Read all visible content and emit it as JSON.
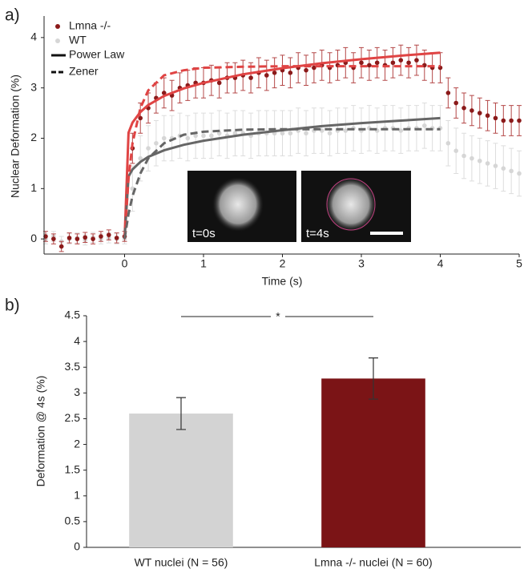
{
  "chart_data": [
    {
      "type": "scatter",
      "panel_label": "a)",
      "x_label": "Time (s)",
      "y_label": "Nuclear Deformation (%)",
      "x": [
        -1,
        -0.9,
        -0.8,
        -0.7,
        -0.6,
        -0.5,
        -0.4,
        -0.3,
        -0.2,
        -0.1,
        0,
        0.1,
        0.2,
        0.3,
        0.4,
        0.5,
        0.6,
        0.7,
        0.8,
        0.9,
        1,
        1.1,
        1.2,
        1.3,
        1.4,
        1.5,
        1.6,
        1.7,
        1.8,
        1.9,
        2,
        2.1,
        2.2,
        2.3,
        2.4,
        2.5,
        2.6,
        2.7,
        2.8,
        2.9,
        3,
        3.1,
        3.2,
        3.3,
        3.4,
        3.5,
        3.6,
        3.7,
        3.8,
        3.9,
        4,
        4.1,
        4.2,
        4.3,
        4.4,
        4.5,
        4.6,
        4.7,
        4.8,
        4.9,
        5
      ],
      "series": [
        {
          "name": "Lmna -/-",
          "color": "#8b1a1a",
          "error_color": "#b44848",
          "values": [
            0.05,
            0.0,
            -0.15,
            0.02,
            0.0,
            0.03,
            0.0,
            0.05,
            0.08,
            0.02,
            0.05,
            1.8,
            2.4,
            2.6,
            2.8,
            2.9,
            2.85,
            3.0,
            3.05,
            3.1,
            3.1,
            3.15,
            3.1,
            3.2,
            3.2,
            3.25,
            3.2,
            3.3,
            3.25,
            3.3,
            3.35,
            3.3,
            3.4,
            3.35,
            3.4,
            3.45,
            3.4,
            3.45,
            3.5,
            3.4,
            3.5,
            3.45,
            3.5,
            3.45,
            3.5,
            3.55,
            3.5,
            3.55,
            3.45,
            3.4,
            3.4,
            2.9,
            2.7,
            2.6,
            2.55,
            2.5,
            2.45,
            2.4,
            2.35,
            2.35,
            2.35
          ],
          "errors": [
            0.1,
            0.1,
            0.1,
            0.1,
            0.1,
            0.1,
            0.1,
            0.1,
            0.1,
            0.1,
            0.1,
            0.3,
            0.3,
            0.3,
            0.3,
            0.3,
            0.3,
            0.3,
            0.3,
            0.3,
            0.3,
            0.3,
            0.3,
            0.3,
            0.3,
            0.3,
            0.3,
            0.3,
            0.3,
            0.3,
            0.3,
            0.3,
            0.3,
            0.3,
            0.3,
            0.3,
            0.3,
            0.3,
            0.3,
            0.3,
            0.3,
            0.3,
            0.3,
            0.3,
            0.3,
            0.3,
            0.3,
            0.3,
            0.3,
            0.3,
            0.3,
            0.3,
            0.3,
            0.3,
            0.3,
            0.3,
            0.3,
            0.3,
            0.3,
            0.3,
            0.3
          ]
        },
        {
          "name": "WT",
          "color": "#d6d6d6",
          "error_color": "#dddddd",
          "values": [
            0.0,
            0.05,
            -0.05,
            0.0,
            0.02,
            -0.02,
            0.03,
            0.0,
            0.02,
            0.0,
            0.0,
            1.0,
            1.6,
            1.8,
            1.9,
            2.0,
            2.0,
            2.05,
            2.0,
            2.05,
            2.05,
            2.05,
            2.1,
            2.05,
            2.1,
            2.1,
            2.05,
            2.1,
            2.1,
            2.1,
            2.1,
            2.1,
            2.15,
            2.1,
            2.15,
            2.15,
            2.1,
            2.15,
            2.15,
            2.2,
            2.15,
            2.2,
            2.15,
            2.2,
            2.2,
            2.15,
            2.2,
            2.2,
            2.25,
            2.2,
            2.2,
            1.9,
            1.75,
            1.65,
            1.6,
            1.55,
            1.5,
            1.45,
            1.4,
            1.35,
            1.3
          ],
          "errors": [
            0.1,
            0.1,
            0.1,
            0.1,
            0.1,
            0.1,
            0.1,
            0.1,
            0.1,
            0.1,
            0.1,
            0.45,
            0.45,
            0.45,
            0.45,
            0.45,
            0.45,
            0.45,
            0.45,
            0.45,
            0.45,
            0.45,
            0.45,
            0.45,
            0.45,
            0.45,
            0.45,
            0.45,
            0.45,
            0.45,
            0.45,
            0.45,
            0.45,
            0.45,
            0.45,
            0.45,
            0.45,
            0.45,
            0.45,
            0.45,
            0.45,
            0.45,
            0.45,
            0.45,
            0.45,
            0.45,
            0.45,
            0.45,
            0.45,
            0.45,
            0.45,
            0.45,
            0.45,
            0.45,
            0.45,
            0.45,
            0.45,
            0.45,
            0.45,
            0.45,
            0.45
          ]
        }
      ],
      "fit_x": [
        0,
        0.05,
        0.1,
        0.2,
        0.3,
        0.5,
        0.75,
        1,
        1.5,
        2,
        2.5,
        3,
        3.5,
        4
      ],
      "fits": [
        {
          "name": "Power Law",
          "dashed": false,
          "curves": [
            {
              "color": "#e04444",
              "values": [
                0,
                2.11,
                2.31,
                2.52,
                2.66,
                2.84,
                2.99,
                3.1,
                3.27,
                3.39,
                3.49,
                3.57,
                3.64,
                3.7
              ]
            },
            {
              "color": "#666666",
              "values": [
                0,
                1.24,
                1.38,
                1.53,
                1.63,
                1.76,
                1.87,
                1.95,
                2.07,
                2.16,
                2.24,
                2.3,
                2.35,
                2.4
              ]
            }
          ]
        },
        {
          "name": "Zener",
          "dashed": true,
          "curves": [
            {
              "color": "#e04444",
              "values": [
                0,
                1.2,
                1.9,
                2.6,
                2.95,
                3.25,
                3.35,
                3.4,
                3.42,
                3.43,
                3.43,
                3.43,
                3.43,
                3.43
              ]
            },
            {
              "color": "#666666",
              "values": [
                0,
                0.5,
                0.85,
                1.3,
                1.6,
                1.9,
                2.07,
                2.13,
                2.17,
                2.18,
                2.18,
                2.18,
                2.18,
                2.18
              ]
            }
          ]
        }
      ],
      "inset_labels": [
        "t=0s",
        "t=4s"
      ],
      "xlim": [
        -1,
        5
      ],
      "xticks": [
        0,
        1,
        2,
        3,
        4,
        5
      ],
      "ylim": [
        -0.3,
        4.3
      ],
      "yticks": [
        0,
        1,
        2,
        3,
        4
      ]
    },
    {
      "type": "bar",
      "panel_label": "b)",
      "y_label": "Deformation @ 4s (%)",
      "categories": [
        "WT nuclei (N = 56)",
        "Lmna -/- nuclei (N = 60)"
      ],
      "values": [
        2.6,
        3.28
      ],
      "errors": [
        0.31,
        0.4
      ],
      "colors": [
        "#d3d3d3",
        "#7b1416"
      ],
      "significance": "*",
      "ylim": [
        0,
        4.5
      ],
      "yticks": [
        0,
        0.5,
        1,
        1.5,
        2,
        2.5,
        3,
        3.5,
        4,
        4.5
      ]
    }
  ]
}
